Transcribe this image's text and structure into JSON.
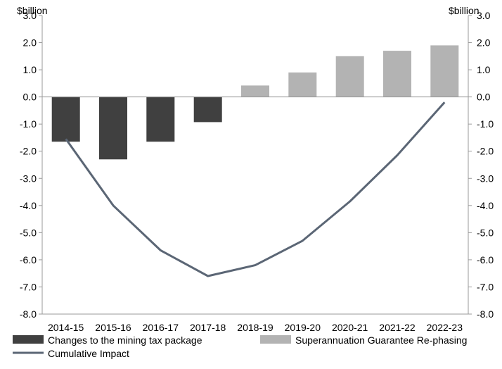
{
  "chart_data": {
    "type": "bar",
    "unit_left": "$billion",
    "unit_right": "$billion",
    "categories": [
      "2014-15",
      "2015-16",
      "2016-17",
      "2017-18",
      "2018-19",
      "2019-20",
      "2020-21",
      "2021-22",
      "2022-23"
    ],
    "ylim": [
      -8.0,
      3.0
    ],
    "yticks": [
      "3.0",
      "2.0",
      "1.0",
      "0.0",
      "-1.0",
      "-2.0",
      "-3.0",
      "-4.0",
      "-5.0",
      "-6.0",
      "-7.0",
      "-8.0"
    ],
    "series": [
      {
        "name": "Changes to the mining tax package",
        "kind": "bar",
        "color": "#404040",
        "values": [
          -1.65,
          -2.3,
          -1.65,
          -0.93,
          null,
          null,
          null,
          null,
          null
        ]
      },
      {
        "name": "Superannuation Guarantee Re-phasing",
        "kind": "bar",
        "color": "#b3b3b3",
        "values": [
          null,
          null,
          null,
          null,
          0.42,
          0.9,
          1.5,
          1.7,
          1.9
        ]
      },
      {
        "name": "Cumulative Impact",
        "kind": "line",
        "color": "#5b6675",
        "values": [
          -1.55,
          -4.0,
          -5.65,
          -6.6,
          -6.2,
          -5.3,
          -3.85,
          -2.15,
          -0.2
        ]
      }
    ],
    "legend_position": "bottom"
  }
}
